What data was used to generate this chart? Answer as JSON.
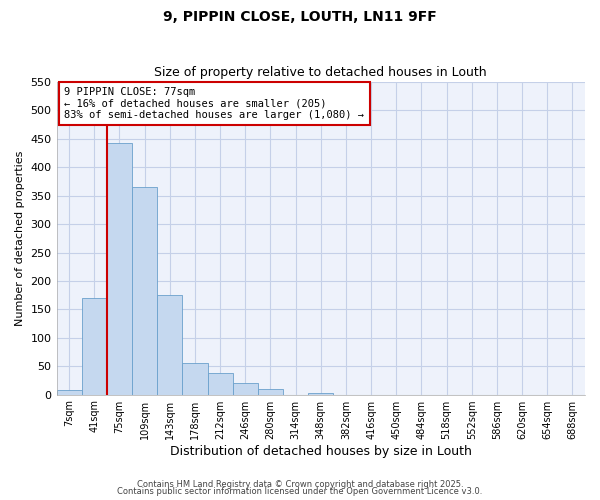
{
  "title": "9, PIPPIN CLOSE, LOUTH, LN11 9FF",
  "subtitle": "Size of property relative to detached houses in Louth",
  "xlabel": "Distribution of detached houses by size in Louth",
  "ylabel": "Number of detached properties",
  "bar_labels": [
    "7sqm",
    "41sqm",
    "75sqm",
    "109sqm",
    "143sqm",
    "178sqm",
    "212sqm",
    "246sqm",
    "280sqm",
    "314sqm",
    "348sqm",
    "382sqm",
    "416sqm",
    "450sqm",
    "484sqm",
    "518sqm",
    "552sqm",
    "586sqm",
    "620sqm",
    "654sqm",
    "688sqm"
  ],
  "bar_values": [
    8,
    170,
    443,
    365,
    175,
    55,
    38,
    21,
    10,
    0,
    2,
    0,
    0,
    0,
    0,
    0,
    0,
    0,
    0,
    0,
    0
  ],
  "bar_color": "#c5d8ef",
  "bar_edge_color": "#6aa0cc",
  "vline_color": "#cc0000",
  "vline_pos": 1.5,
  "ylim": [
    0,
    550
  ],
  "yticks": [
    0,
    50,
    100,
    150,
    200,
    250,
    300,
    350,
    400,
    450,
    500,
    550
  ],
  "annotation_text": "9 PIPPIN CLOSE: 77sqm\n← 16% of detached houses are smaller (205)\n83% of semi-detached houses are larger (1,080) →",
  "annotation_box_color": "#ffffff",
  "annotation_box_edge": "#cc0000",
  "footer_line1": "Contains HM Land Registry data © Crown copyright and database right 2025.",
  "footer_line2": "Contains public sector information licensed under the Open Government Licence v3.0.",
  "bg_color": "#ffffff",
  "plot_bg_color": "#eef2fb",
  "grid_color": "#c5d0e8"
}
